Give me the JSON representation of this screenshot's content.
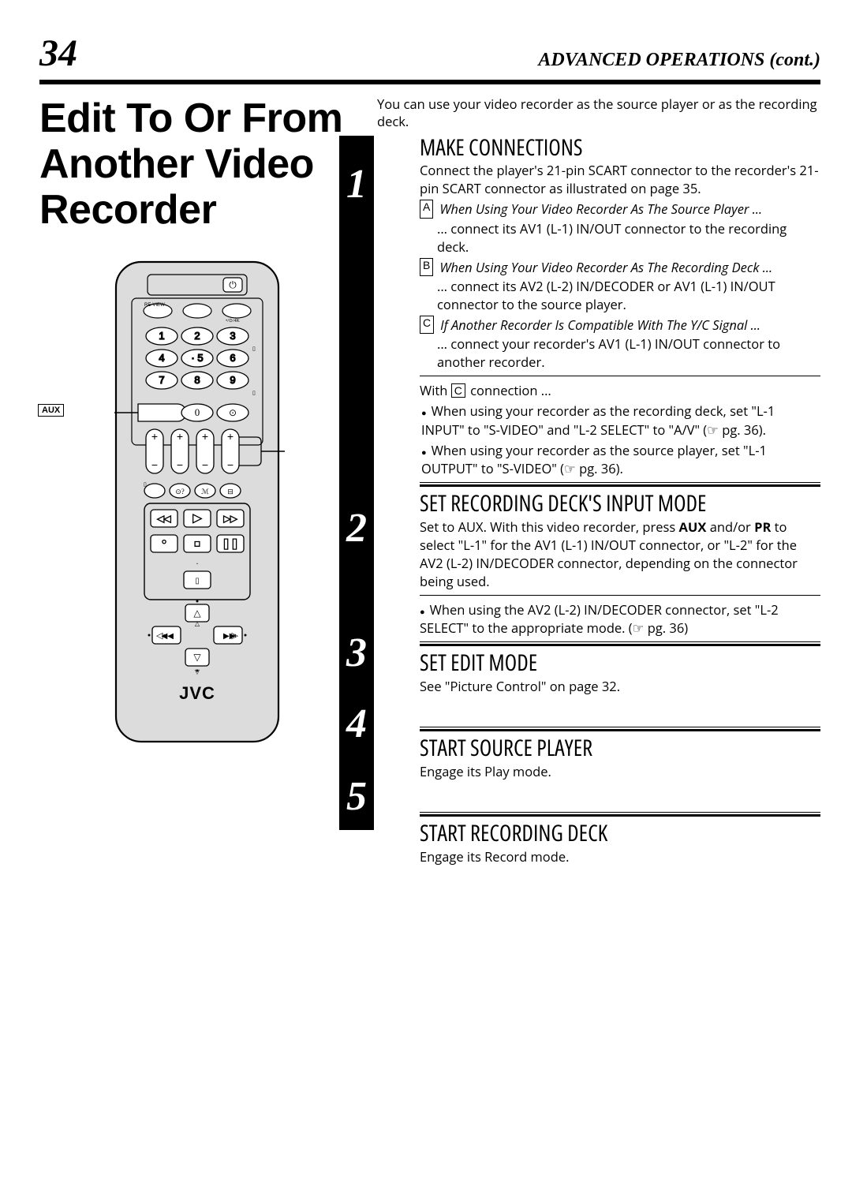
{
  "page_number": "34",
  "header_section": "ADVANCED OPERATIONS (cont.)",
  "title": "Edit To Or From Another Video Recorder",
  "intro": "You can use your video recorder as the source player or as the recording deck.",
  "steps": [
    {
      "num": "1",
      "heading": "MAKE CONNECTIONS",
      "lead": "Connect the player's 21-pin SCART connector to the recorder's 21-pin SCART connector as illustrated on page 35.",
      "cases": [
        {
          "letter": "A",
          "title": "When Using Your Video Recorder As The Source Player ...",
          "body": "... connect its AV1 (L-1) IN/OUT connector to the recording deck."
        },
        {
          "letter": "B",
          "title": "When Using Your Video Recorder As The Recording Deck ...",
          "body": "... connect its AV2 (L-2) IN/DECODER or AV1 (L-1) IN/OUT connector to the source player."
        },
        {
          "letter": "C",
          "title": "If Another Recorder Is Compatible With The Y/C Signal ...",
          "body": "... connect your recorder's AV1 (L-1) IN/OUT connector to another recorder."
        }
      ],
      "with_c": "With",
      "with_c_letter": "C",
      "with_c_tail": "connection ...",
      "c_bullets": [
        "When using your recorder as the recording deck, set \"L-1 INPUT\" to \"S-VIDEO\" and \"L-2 SELECT\" to \"A/V\" (☞ pg. 36).",
        "When using your recorder as the source player, set \"L-1 OUTPUT\" to \"S-VIDEO\" (☞ pg. 36)."
      ]
    },
    {
      "num": "2",
      "heading": "SET RECORDING DECK'S INPUT MODE",
      "body": "Set to AUX. With this video recorder, press <b>AUX</b> and/or <b>PR</b> to select \"L-1\" for the AV1 (L-1) IN/OUT connector, or \"L-2\" for the AV2 (L-2) IN/DECODER connector, depending on the connector being used.",
      "bullet": "When using the AV2 (L-2) IN/DECODER connector, set \"L-2 SELECT\" to the appropriate mode. (☞ pg. 36)"
    },
    {
      "num": "3",
      "heading": "SET EDIT MODE",
      "body": "See \"Picture Control\" on page 32."
    },
    {
      "num": "4",
      "heading": "START SOURCE PLAYER",
      "body": "Engage its Play mode."
    },
    {
      "num": "5",
      "heading": "START RECORDING DECK",
      "body": "Engage its Record mode."
    }
  ],
  "remote": {
    "brand": "JVC",
    "aux_label": "AUX",
    "pr_label": "PR",
    "outline_color": "#000000",
    "body_fill": "#dcdcdc",
    "button_fill": "#ffffff"
  }
}
